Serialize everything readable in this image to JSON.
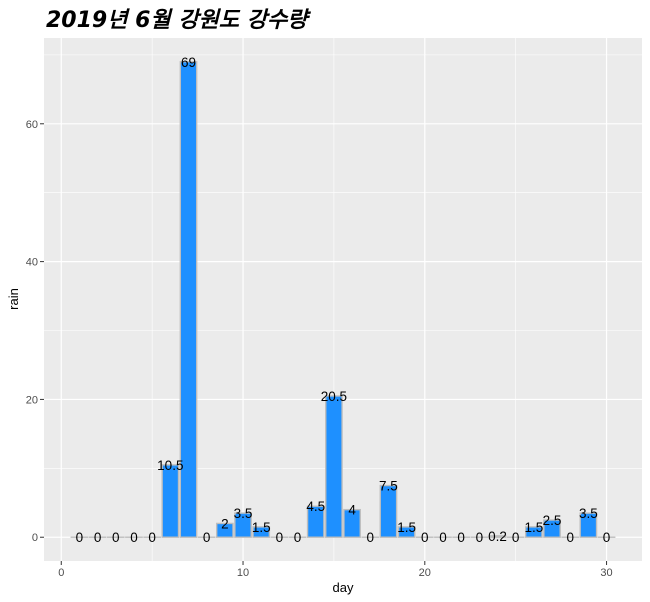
{
  "chart_data": {
    "type": "bar",
    "title": "2019년 6월 강원도 강수량",
    "xlabel": "day",
    "ylabel": "rain",
    "x": [
      1,
      2,
      3,
      4,
      5,
      6,
      7,
      8,
      9,
      10,
      11,
      12,
      13,
      14,
      15,
      16,
      17,
      18,
      19,
      20,
      21,
      22,
      23,
      24,
      25,
      26,
      27,
      28,
      29,
      30
    ],
    "values": [
      0,
      0,
      0,
      0,
      0,
      10.5,
      69,
      0,
      2,
      3.5,
      1.5,
      0,
      0,
      4.5,
      20.5,
      4,
      0,
      7.5,
      1.5,
      0,
      0,
      0,
      0,
      0.2,
      0,
      1.5,
      2.5,
      0,
      3.5,
      0
    ],
    "labels": [
      "0",
      "0",
      "0",
      "0",
      "0",
      "10.5",
      "69",
      "0",
      "2",
      "3.5",
      "1.5",
      "0",
      "0",
      "4.5",
      "20.5",
      "4",
      "0",
      "7.5",
      "1.5",
      "0",
      "0",
      "0",
      "0",
      "0.2",
      "0",
      "1.5",
      "2.5",
      "0",
      "3.5",
      "0"
    ],
    "xlim": [
      -0.95,
      31.95
    ],
    "ylim": [
      -3.45,
      72.45
    ],
    "x_ticks": [
      0,
      10,
      20,
      30
    ],
    "x_tick_labels": [
      "0",
      "10",
      "20",
      "30"
    ],
    "y_ticks": [
      0,
      20,
      40,
      60
    ],
    "y_tick_labels": [
      "0",
      "20",
      "40",
      "60"
    ],
    "grid": true,
    "legend": "none",
    "colors": {
      "bar_fill": "#1E90FF",
      "bar_outline": "#BEBEBE",
      "panel_background": "#EBEBEB",
      "grid_line": "#FFFFFF"
    }
  }
}
